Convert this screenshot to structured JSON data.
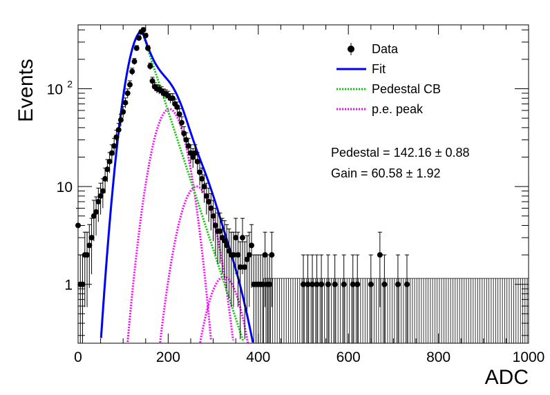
{
  "chart_data": {
    "type": "scatter",
    "xlabel": "ADC",
    "ylabel": "Events",
    "xlim": [
      0,
      1000
    ],
    "ylim": [
      0.25,
      450
    ],
    "y_scale": "log",
    "x_ticks": [
      "0",
      "200",
      "400",
      "600",
      "800",
      "1000"
    ],
    "y_ticks": [
      {
        "value": 1,
        "label": "1"
      },
      {
        "value": 10,
        "label": "10"
      },
      {
        "value": 100,
        "label": "10",
        "sup": "2"
      }
    ],
    "legend_position": "top-right",
    "legend": [
      {
        "label": "Data",
        "style": "marker",
        "color": "#000000"
      },
      {
        "label": "Fit",
        "style": "solid",
        "color": "#0000ff"
      },
      {
        "label": "Pedestal CB",
        "style": "dotted",
        "color": "#00cc00"
      },
      {
        "label": "p.e. peak",
        "style": "dotted",
        "color": "#ff00ff"
      }
    ],
    "annotations": [
      {
        "name": "Pedestal",
        "value": "142.16",
        "error": "0.88"
      },
      {
        "name": "Gain",
        "value": "60.58",
        "error": "1.92"
      }
    ],
    "data": {
      "x": [
        0,
        5,
        10,
        15,
        20,
        25,
        30,
        35,
        40,
        45,
        50,
        55,
        60,
        65,
        70,
        75,
        80,
        85,
        90,
        95,
        100,
        105,
        110,
        115,
        120,
        125,
        130,
        135,
        140,
        145,
        150,
        155,
        160,
        165,
        170,
        175,
        180,
        185,
        190,
        195,
        200,
        205,
        210,
        215,
        220,
        225,
        230,
        235,
        240,
        245,
        250,
        255,
        260,
        265,
        270,
        275,
        280,
        285,
        290,
        295,
        300,
        305,
        310,
        315,
        320,
        325,
        330,
        335,
        340,
        345,
        350,
        355,
        360,
        365,
        370,
        375,
        380,
        385,
        390,
        395,
        400,
        405,
        410,
        415,
        420,
        425,
        430,
        500,
        510,
        520,
        530,
        540,
        555,
        570,
        590,
        610,
        620,
        650,
        670,
        680,
        710,
        730
      ],
      "y": [
        4,
        1,
        1,
        2,
        2,
        2.5,
        3,
        5,
        5.5,
        7,
        8,
        9,
        12,
        15,
        18,
        22,
        26,
        32,
        38,
        48,
        58,
        72,
        90,
        110,
        150,
        190,
        260,
        330,
        380,
        400,
        350,
        260,
        170,
        120,
        105,
        100,
        98,
        95,
        90,
        88,
        85,
        80,
        80,
        70,
        65,
        55,
        45,
        35,
        30,
        26,
        22,
        20,
        22,
        18,
        14,
        12,
        10,
        8,
        7,
        6,
        5,
        4,
        3.5,
        3.5,
        3,
        2.8,
        2.5,
        2.2,
        2,
        2,
        3,
        2,
        1.5,
        3,
        1.5,
        1.8,
        2,
        2.5,
        1,
        1,
        1,
        1,
        1,
        2,
        1,
        1,
        2,
        1,
        1,
        1,
        1,
        1,
        1,
        1,
        1,
        1,
        1,
        1,
        2,
        1,
        1,
        1
      ]
    },
    "functions": {
      "fit": {
        "pedestal_amp": 385,
        "pedestal_mean": 142.16,
        "sigma_left": 24,
        "tail_slope": 0.0325,
        "gain": 60.58,
        "pe_peaks": [
          {
            "mean": 202.7,
            "amp": 62,
            "sigma": 28
          },
          {
            "mean": 263.3,
            "amp": 10,
            "sigma": 30
          },
          {
            "mean": 323.9,
            "amp": 1.2,
            "sigma": 30
          }
        ]
      }
    }
  }
}
